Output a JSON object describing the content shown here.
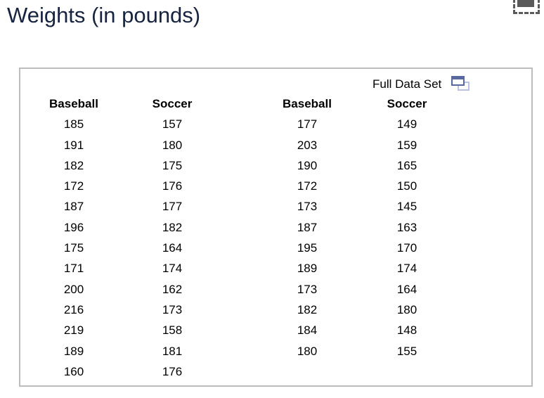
{
  "title": "Weights (in pounds)",
  "panel": {
    "full_data_set_label": "Full Data Set"
  },
  "icons": {
    "open_window_icon": "open-in-new-window",
    "crop_icon": "dashed-region-toolbar-icon"
  },
  "colors": {
    "title_text": "#172440",
    "panel_border": "#bdbdbd",
    "window_icon_dark": "#5a68a0",
    "window_icon_light": "#b9c2e2",
    "crop_icon_gray": "#5a5a5a",
    "table_text": "#000000"
  },
  "table": {
    "columns": [
      {
        "header": "Baseball",
        "values": [
          "185",
          "191",
          "182",
          "172",
          "187",
          "196",
          "175",
          "171",
          "200",
          "216",
          "219",
          "189",
          "160"
        ]
      },
      {
        "header": "Soccer",
        "values": [
          "157",
          "180",
          "175",
          "176",
          "177",
          "182",
          "164",
          "174",
          "162",
          "173",
          "158",
          "181",
          "176"
        ]
      },
      {
        "header": "Baseball",
        "values": [
          "177",
          "203",
          "190",
          "172",
          "173",
          "187",
          "195",
          "189",
          "173",
          "182",
          "184",
          "180"
        ]
      },
      {
        "header": "Soccer",
        "values": [
          "149",
          "159",
          "165",
          "150",
          "145",
          "163",
          "170",
          "174",
          "164",
          "180",
          "148",
          "155"
        ]
      }
    ]
  }
}
